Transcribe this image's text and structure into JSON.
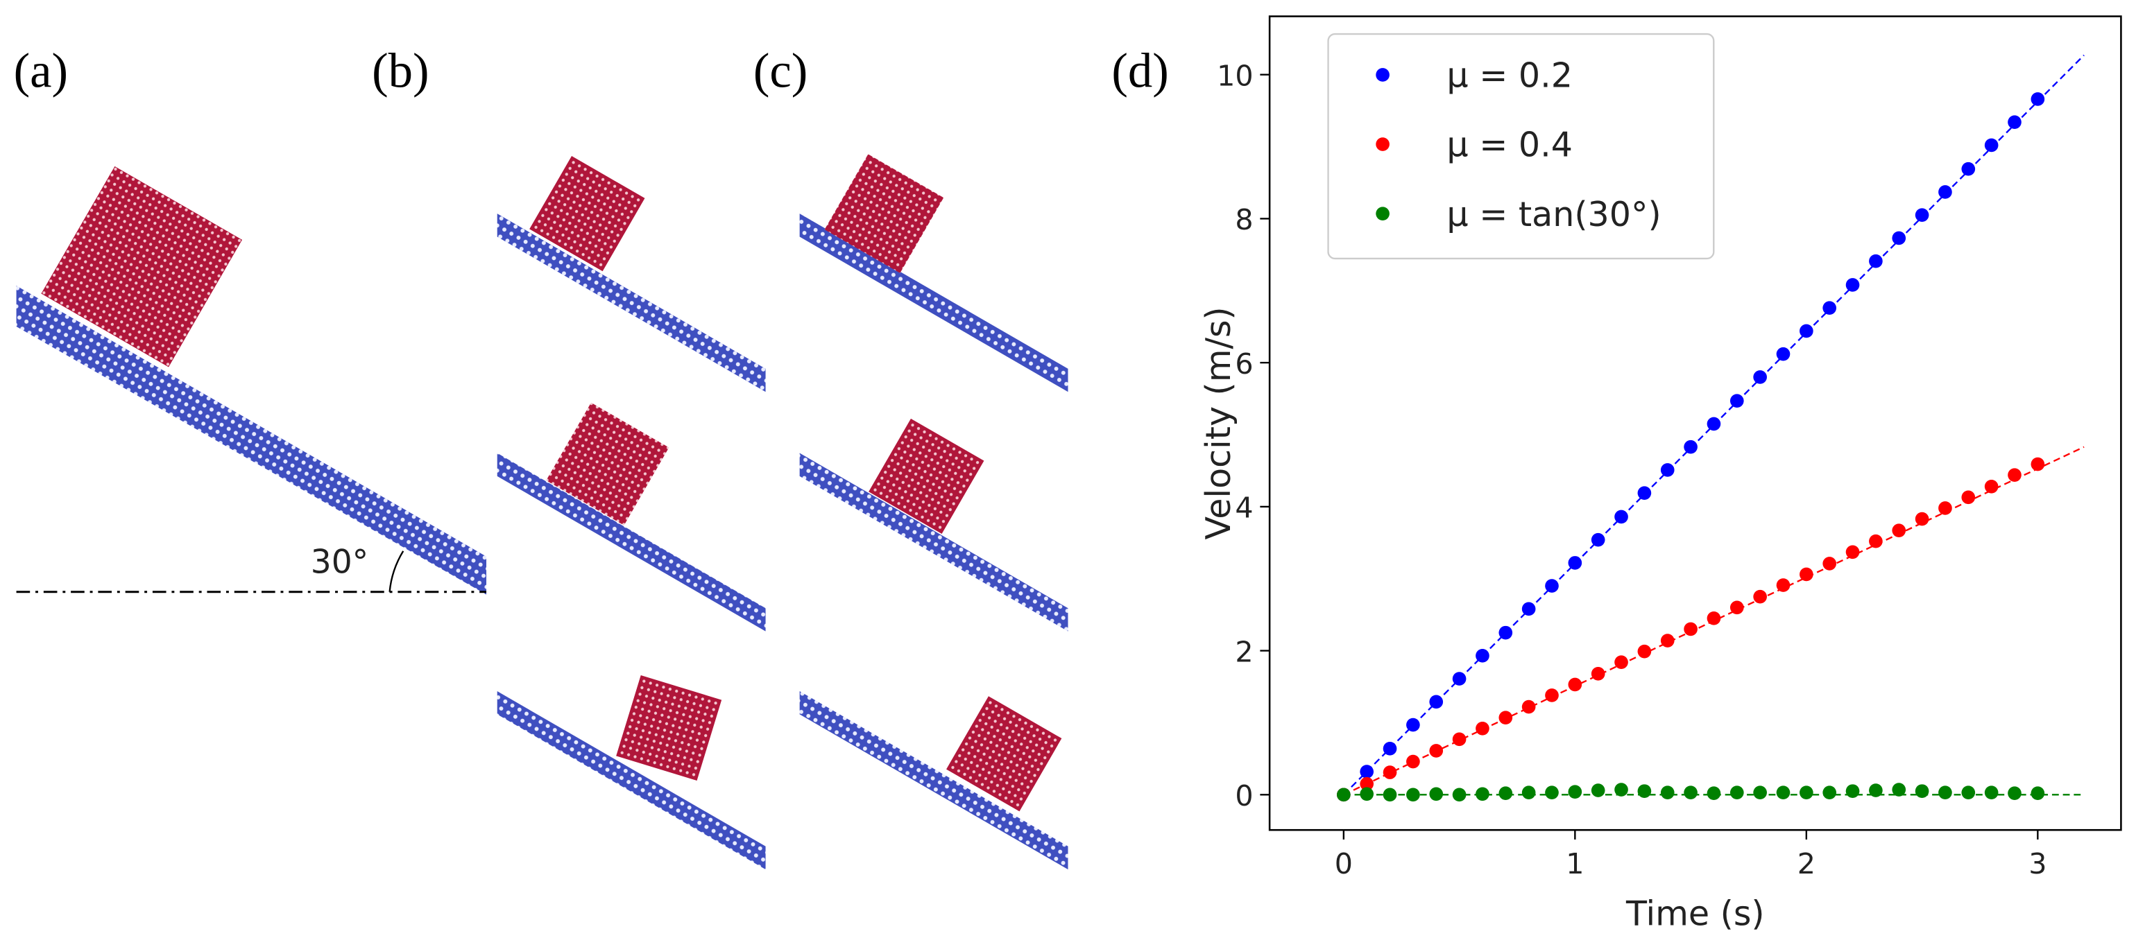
{
  "panel_labels": [
    "(a)",
    "(b)",
    "(c)",
    "(d)"
  ],
  "angle_label": "30°",
  "chart_data": {
    "type": "scatter",
    "xlabel": "Time (s)",
    "ylabel": "Velocity (m/s)",
    "xlim": [
      -0.32,
      3.36
    ],
    "ylim": [
      -0.49,
      10.81
    ],
    "xticks": [
      0,
      1,
      2,
      3
    ],
    "yticks": [
      0,
      2,
      4,
      6,
      8,
      10
    ],
    "legend": "upper left",
    "grid": false,
    "x": [
      0,
      0.1,
      0.2,
      0.3,
      0.4,
      0.5,
      0.6,
      0.7,
      0.8,
      0.9,
      1.0,
      1.1,
      1.2,
      1.3,
      1.4,
      1.5,
      1.6,
      1.7,
      1.8,
      1.9,
      2.0,
      2.1,
      2.2,
      2.3,
      2.4,
      2.5,
      2.6,
      2.7,
      2.8,
      2.9,
      3.0
    ],
    "series": [
      {
        "name": "μ = 0.2",
        "color": "#0000ff",
        "values": [
          0,
          0.32,
          0.64,
          0.97,
          1.29,
          1.61,
          1.93,
          2.25,
          2.58,
          2.9,
          3.22,
          3.54,
          3.86,
          4.19,
          4.51,
          4.83,
          5.15,
          5.47,
          5.8,
          6.12,
          6.44,
          6.76,
          7.08,
          7.41,
          7.73,
          8.05,
          8.37,
          8.69,
          9.02,
          9.34,
          9.66
        ]
      },
      {
        "name": "μ = 0.4",
        "color": "#ff0000",
        "values": [
          0,
          0.15,
          0.31,
          0.46,
          0.61,
          0.77,
          0.92,
          1.07,
          1.22,
          1.38,
          1.53,
          1.68,
          1.84,
          1.99,
          2.14,
          2.3,
          2.45,
          2.6,
          2.75,
          2.91,
          3.06,
          3.21,
          3.37,
          3.52,
          3.67,
          3.83,
          3.98,
          4.13,
          4.28,
          4.44,
          4.59
        ]
      },
      {
        "name": "μ = tan(30°)",
        "color": "#008000",
        "values": [
          0,
          0.01,
          0,
          0,
          0.01,
          0,
          0.01,
          0.02,
          0.03,
          0.03,
          0.04,
          0.06,
          0.07,
          0.05,
          0.03,
          0.03,
          0.02,
          0.03,
          0.03,
          0.03,
          0.03,
          0.03,
          0.05,
          0.06,
          0.07,
          0.05,
          0.03,
          0.03,
          0.03,
          0.02,
          0.02
        ]
      }
    ],
    "fit_lines": [
      {
        "color": "#0000ff",
        "x": [
          0,
          3.2
        ],
        "values": [
          0,
          10.27
        ]
      },
      {
        "color": "#ff0000",
        "x": [
          0,
          3.2
        ],
        "values": [
          0,
          4.83
        ]
      },
      {
        "color": "#008000",
        "x": [
          0,
          3.2
        ],
        "values": [
          0,
          0
        ]
      }
    ]
  }
}
